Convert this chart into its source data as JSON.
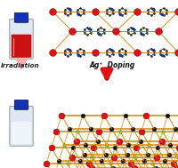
{
  "background_color": "#ffffff",
  "irradiation_text": "Irradiation",
  "doping_text": "Ag⁺  Doping",
  "arrow_pink": "#FFB0B0",
  "arrow_red": "#DD1111",
  "vial_cap": "#1133bb",
  "vial_body": "#d8e8f2",
  "vial_red": "#cc1111",
  "vial_clear": "#eef4f8",
  "bond_col": "#cc8800",
  "red_node": "#dd1111",
  "black_node": "#111111",
  "yellow_node": "#aacc00",
  "dark_node": "#222244",
  "blue_node": "#1144bb",
  "figsize": [
    2.0,
    1.89
  ],
  "dpi": 100
}
